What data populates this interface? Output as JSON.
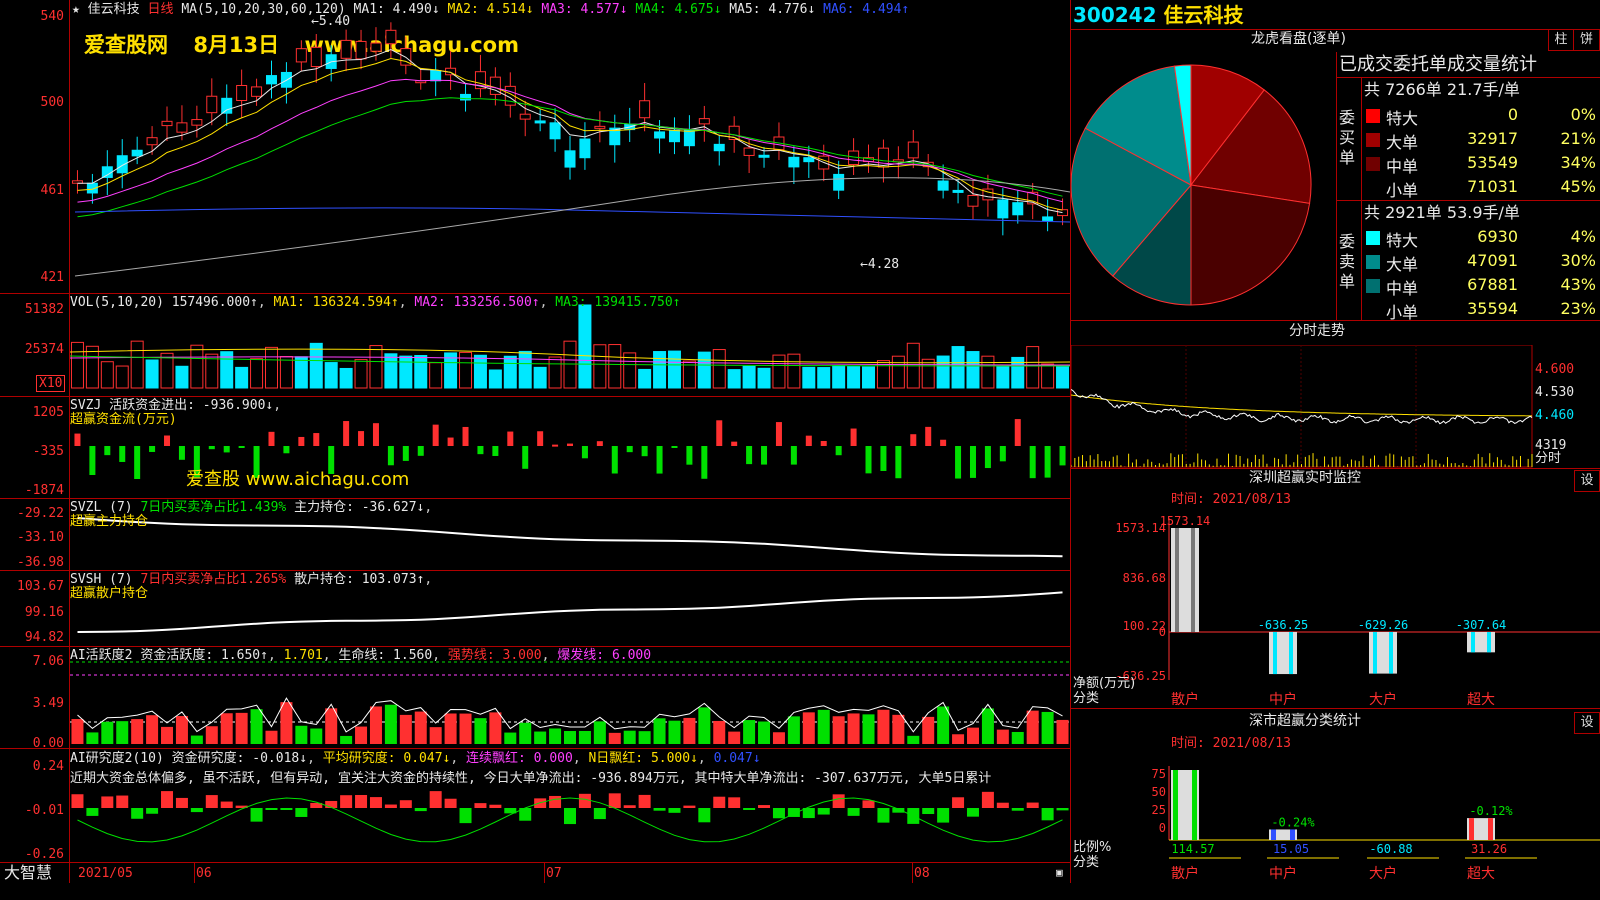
{
  "chart_header": {
    "name": "佳云科技",
    "period": "日线",
    "ma_title": "MA(5,10,20,30,60,120)",
    "ma1": "MA1: 4.490↓",
    "ma2": "MA2: 4.514↓",
    "ma3": "MA3: 4.577↓",
    "ma4": "MA4: 4.675↓",
    "ma5": "MA5: 4.776↓",
    "ma6": "MA6: 4.494↑",
    "high_mark": "5.40",
    "low_mark": "4.28"
  },
  "watermark": {
    "site": "爱查股网",
    "date": "8月13日",
    "url": "www.aichagu.com",
    "mid_text": "爱查股 www.aichagu.com"
  },
  "price_axis": [
    "540",
    "500",
    "461",
    "421"
  ],
  "vol_panel": {
    "title": "VOL(5,10,20)",
    "value": "157496.000↑",
    "ma1": "MA1: 136324.594↑",
    "ma2": "MA2: 133256.500↑",
    "ma3": "MA3: 139415.750↑",
    "axis": [
      "51382",
      "25374"
    ],
    "unit": "X10"
  },
  "svzj_panel": {
    "title": "SVZJ",
    "label": "活跃资金进出: -936.900↓",
    "subtitle": "超赢资金流(万元)",
    "axis": [
      "1205",
      "-335",
      "-1874"
    ]
  },
  "svzl_panel": {
    "title": "SVZL (7)",
    "label1": "7日内买卖净占比1.439%",
    "label2": "主力持仓: -36.627↓",
    "subtitle": "超赢主力持仓",
    "axis": [
      "-29.22",
      "-33.10",
      "-36.98"
    ]
  },
  "svsh_panel": {
    "title": "SVSH (7)",
    "label1": "7日内买卖净占比1.265%",
    "label2": "散户持仓: 103.073↑",
    "subtitle": "超赢散户持仓",
    "axis": [
      "103.67",
      "99.16",
      "94.82"
    ]
  },
  "ai_active_panel": {
    "title": "AI活跃度2",
    "label1": "资金活跃度: 1.650↑",
    "label2": "1.701",
    "label3": "生命线: 1.560",
    "label4": "强势线: 3.000",
    "label5": "爆发线: 6.000",
    "axis": [
      "7.06",
      "3.49",
      "0.00"
    ]
  },
  "ai_research_panel": {
    "title": "AI研究度2(10)",
    "label1": "资金研究度: -0.018↓",
    "label2": "平均研究度: 0.047↓",
    "label3": "连续飘红: 0.000",
    "label4": "N日飘红: 5.000↓",
    "label5": "0.047↓",
    "commentary": "近期大资金总体偏多, 虽不活跃, 但有异动, 宜关注大资金的持续性, 今日大单净流出: -936.894万元, 其中特大单净流出: -307.637万元, 大单5日累计",
    "axis": [
      "0.24",
      "-0.01",
      "-0.26"
    ]
  },
  "time_axis": {
    "brand": "大智慧",
    "labels": [
      "2021/05",
      "06",
      "07",
      "08"
    ]
  },
  "right_panel": {
    "code": "300242",
    "name": "佳云科技",
    "lhb_title": "龙虎看盘(逐单)",
    "btn_bar": "柱",
    "btn_pie": "饼",
    "stats_title": "已成交委托单成交量统计",
    "buy": {
      "side_label": "委买单",
      "total": "共 7266单 21.7手/单",
      "rows": [
        {
          "name": "特大",
          "value": "0",
          "pct": "0%",
          "color": "#ff0000"
        },
        {
          "name": "大单",
          "value": "32917",
          "pct": "21%",
          "color": "#a00000"
        },
        {
          "name": "中单",
          "value": "53549",
          "pct": "34%",
          "color": "#700000"
        },
        {
          "name": "小单",
          "value": "71031",
          "pct": "45%",
          "color": "#000000"
        }
      ]
    },
    "sell": {
      "side_label": "委卖单",
      "total": "共 2921单 53.9手/单",
      "rows": [
        {
          "name": "特大",
          "value": "6930",
          "pct": "4%",
          "color": "#00ffff"
        },
        {
          "name": "大单",
          "value": "47091",
          "pct": "30%",
          "color": "#008c8c"
        },
        {
          "name": "中单",
          "value": "67881",
          "pct": "43%",
          "color": "#007070"
        },
        {
          "name": "小单",
          "value": "35594",
          "pct": "23%",
          "color": "#000000"
        }
      ]
    },
    "intraday": {
      "title": "分时走势",
      "axis": [
        "4.600",
        "4.530",
        "4.460"
      ],
      "vol_value": "4319",
      "vol_label": "分时"
    },
    "monitor": {
      "title": "深圳超赢实时监控",
      "btn": "设",
      "time_label": "时间: 2021/08/13",
      "axis": [
        "1573.14",
        "836.68",
        "100.22",
        "0",
        "-636.25"
      ],
      "unit1": "净额(万元)",
      "unit2": "分类",
      "bars": [
        {
          "name": "散户",
          "value": 1573.14,
          "label": "1573.14"
        },
        {
          "name": "中户",
          "value": -636.25,
          "label": "-636.25"
        },
        {
          "name": "大户",
          "value": -629.26,
          "label": "-629.26"
        },
        {
          "name": "超大",
          "value": -307.64,
          "label": "-307.64"
        }
      ]
    },
    "classify": {
      "title": "深市超赢分类统计",
      "btn": "设",
      "time_label": "时间: 2021/08/13",
      "axis": [
        "75",
        "50",
        "25",
        "0"
      ],
      "unit1": "比例%",
      "unit2": "分类",
      "bars": [
        {
          "name": "散户",
          "value": 114.57,
          "label": "114.57",
          "top": ""
        },
        {
          "name": "中户",
          "value": 15.05,
          "label": "15.05",
          "top": "-0.24%"
        },
        {
          "name": "大户",
          "value": -60.88,
          "label": "-60.88",
          "top": ""
        },
        {
          "name": "超大",
          "value": 31.26,
          "label": "31.26",
          "top": "-0.12%"
        }
      ]
    }
  }
}
